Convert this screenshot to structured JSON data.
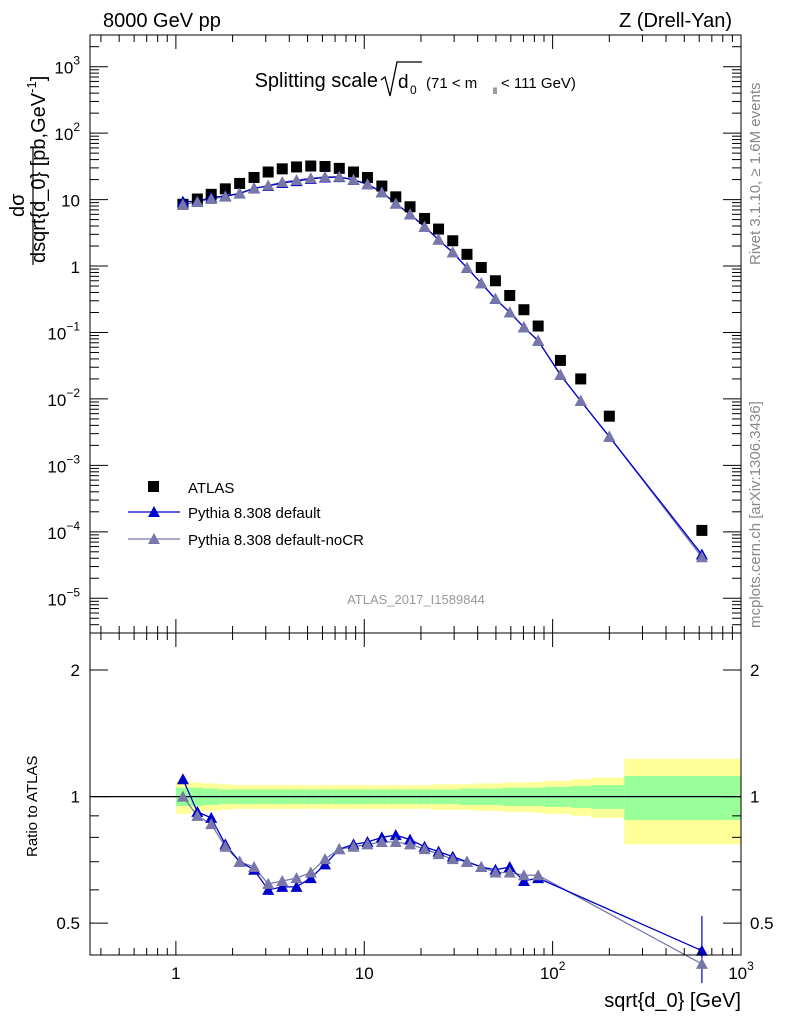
{
  "header": {
    "left": "8000 GeV pp",
    "right": "Z (Drell-Yan)"
  },
  "side_labels": {
    "rivet": "Rivet 3.1.10, ≥ 1.6M events",
    "mcplots": "mcplots.cern.ch [arXiv:1306.3436]"
  },
  "watermark": "ATLAS_2017_I1589844",
  "colors": {
    "data": "#000000",
    "default": "#0000cc",
    "nocr": "#7777aa",
    "band_inner": "#99ff99",
    "band_outer": "#ffff99"
  },
  "chart_data": [
    {
      "type": "scatter",
      "title": "Splitting scale",
      "title_math": {
        "root": "d",
        "root_sub": "0",
        "range_pre": "(71 < m",
        "range_sub": "ll",
        "range_post": " < 111 GeV)"
      },
      "xlabel": "sqrt{d_0} [GeV]",
      "ylabel": {
        "num": "dσ",
        "den": "dsqrt{d_0} [pb,GeV",
        "exp": "-1",
        "close": "]"
      },
      "xscale": "log",
      "yscale": "log",
      "xlim": [
        0.35,
        1000
      ],
      "ylim": [
        3e-06,
        3000
      ],
      "yticks": [
        {
          "value": 1000,
          "label": "10",
          "exp": "3"
        },
        {
          "value": 100,
          "label": "10",
          "exp": "2"
        },
        {
          "value": 10,
          "label": "10",
          "exp": ""
        },
        {
          "value": 1,
          "label": "1",
          "exp": ""
        },
        {
          "value": 0.1,
          "label": "10",
          "exp": "−1"
        },
        {
          "value": 0.01,
          "label": "10",
          "exp": "−2"
        },
        {
          "value": 0.001,
          "label": "10",
          "exp": "−3"
        },
        {
          "value": 0.0001,
          "label": "10",
          "exp": "−4"
        },
        {
          "value": 1e-05,
          "label": "10",
          "exp": "−5"
        }
      ],
      "legend": {
        "position": "bottom-left",
        "entries": [
          "ATLAS",
          "Pythia 8.308 default",
          "Pythia 8.308 default-noCR"
        ]
      },
      "x": [
        1.09,
        1.3,
        1.54,
        1.83,
        2.18,
        2.6,
        3.09,
        3.67,
        4.37,
        5.2,
        6.19,
        7.37,
        8.77,
        10.4,
        12.4,
        14.7,
        17.5,
        20.9,
        24.8,
        29.5,
        35.1,
        41.8,
        49.7,
        59.2,
        70.4,
        83.8,
        110,
        141,
        200,
        620
      ],
      "series": [
        {
          "name": "ATLAS",
          "marker": "square",
          "values": [
            8.5,
            10.2,
            12,
            14.5,
            17.5,
            21.5,
            26,
            29,
            31,
            32,
            31.5,
            29.5,
            26,
            21.5,
            16,
            11,
            7.8,
            5.2,
            3.6,
            2.4,
            1.5,
            0.95,
            0.6,
            0.36,
            0.22,
            0.125,
            0.038,
            0.02,
            0.0055,
            0.000105
          ]
        },
        {
          "name": "Pythia 8.308 default",
          "marker": "triangle",
          "values": [
            9.3,
            9.4,
            10.8,
            11.3,
            12.4,
            14.8,
            16,
            17.8,
            19,
            20.5,
            21.5,
            21.8,
            19.8,
            17,
            13,
            8.7,
            6,
            3.9,
            2.5,
            1.6,
            0.94,
            0.55,
            0.32,
            0.2,
            0.12,
            0.075,
            0.023,
            0.0093,
            0.0027,
            4.55e-05
          ]
        },
        {
          "name": "Pythia 8.308 default-noCR",
          "marker": "triangle",
          "values": [
            8.4,
            9.2,
            10.2,
            11.1,
            12.3,
            14.6,
            16.3,
            18.3,
            19.6,
            21,
            22,
            22.1,
            19.9,
            17,
            12.8,
            8.7,
            6,
            3.9,
            2.5,
            1.6,
            0.94,
            0.55,
            0.32,
            0.2,
            0.12,
            0.075,
            0.023,
            0.0093,
            0.0027,
            4.15e-05
          ]
        }
      ]
    },
    {
      "type": "scatter",
      "ylabel": "Ratio to ATLAS",
      "xscale": "log",
      "yscale": "log",
      "xlim": [
        0.35,
        1000
      ],
      "ylim": [
        0.42,
        2.45
      ],
      "yticks": [
        {
          "value": 2,
          "label": "2"
        },
        {
          "value": 1,
          "label": "1"
        },
        {
          "value": 0.5,
          "label": "0.5"
        }
      ],
      "xticks": [
        {
          "value": 1,
          "label": "1",
          "exp": ""
        },
        {
          "value": 10,
          "label": "10",
          "exp": ""
        },
        {
          "value": 100,
          "label": "10",
          "exp": "2"
        },
        {
          "value": 1000,
          "label": "10",
          "exp": "3"
        }
      ],
      "band_edges": [
        1,
        1.2,
        1.4,
        1.7,
        2,
        2.4,
        2.8,
        3.4,
        4,
        4.8,
        5.7,
        6.8,
        8,
        9.5,
        11.3,
        13.5,
        16,
        19,
        22.7,
        27,
        32,
        38,
        45.4,
        54,
        64,
        76,
        91,
        125,
        160,
        240,
        1000
      ],
      "band_inner": [
        0.05,
        0.05,
        0.045,
        0.04,
        0.04,
        0.04,
        0.04,
        0.04,
        0.04,
        0.04,
        0.04,
        0.04,
        0.04,
        0.04,
        0.04,
        0.04,
        0.04,
        0.04,
        0.04,
        0.04,
        0.045,
        0.045,
        0.045,
        0.05,
        0.05,
        0.05,
        0.055,
        0.06,
        0.065,
        0.12
      ],
      "band_outer": [
        0.09,
        0.08,
        0.075,
        0.07,
        0.065,
        0.065,
        0.065,
        0.065,
        0.065,
        0.065,
        0.065,
        0.065,
        0.065,
        0.065,
        0.065,
        0.065,
        0.065,
        0.065,
        0.07,
        0.07,
        0.07,
        0.075,
        0.075,
        0.08,
        0.08,
        0.085,
        0.09,
        0.1,
        0.11,
        0.23
      ],
      "x": [
        1.09,
        1.3,
        1.54,
        1.83,
        2.18,
        2.6,
        3.09,
        3.67,
        4.37,
        5.2,
        6.19,
        7.37,
        8.77,
        10.4,
        12.4,
        14.7,
        17.5,
        20.9,
        24.8,
        29.5,
        35.1,
        41.8,
        49.7,
        59.2,
        70.4,
        83.8,
        620
      ],
      "series": [
        {
          "name": "Pythia 8.308 default",
          "values": [
            1.1,
            0.92,
            0.89,
            0.77,
            0.7,
            0.67,
            0.6,
            0.61,
            0.61,
            0.64,
            0.69,
            0.75,
            0.77,
            0.78,
            0.8,
            0.81,
            0.79,
            0.76,
            0.74,
            0.72,
            0.7,
            0.68,
            0.67,
            0.68,
            0.63,
            0.64,
            0.43
          ]
        },
        {
          "name": "Pythia 8.308 default-noCR",
          "values": [
            1.0,
            0.9,
            0.86,
            0.76,
            0.7,
            0.68,
            0.62,
            0.63,
            0.64,
            0.66,
            0.71,
            0.75,
            0.76,
            0.77,
            0.78,
            0.78,
            0.77,
            0.75,
            0.73,
            0.71,
            0.7,
            0.68,
            0.66,
            0.66,
            0.65,
            0.65,
            0.4
          ]
        }
      ],
      "last_point_error": [
        0.52,
        0.36
      ]
    }
  ]
}
